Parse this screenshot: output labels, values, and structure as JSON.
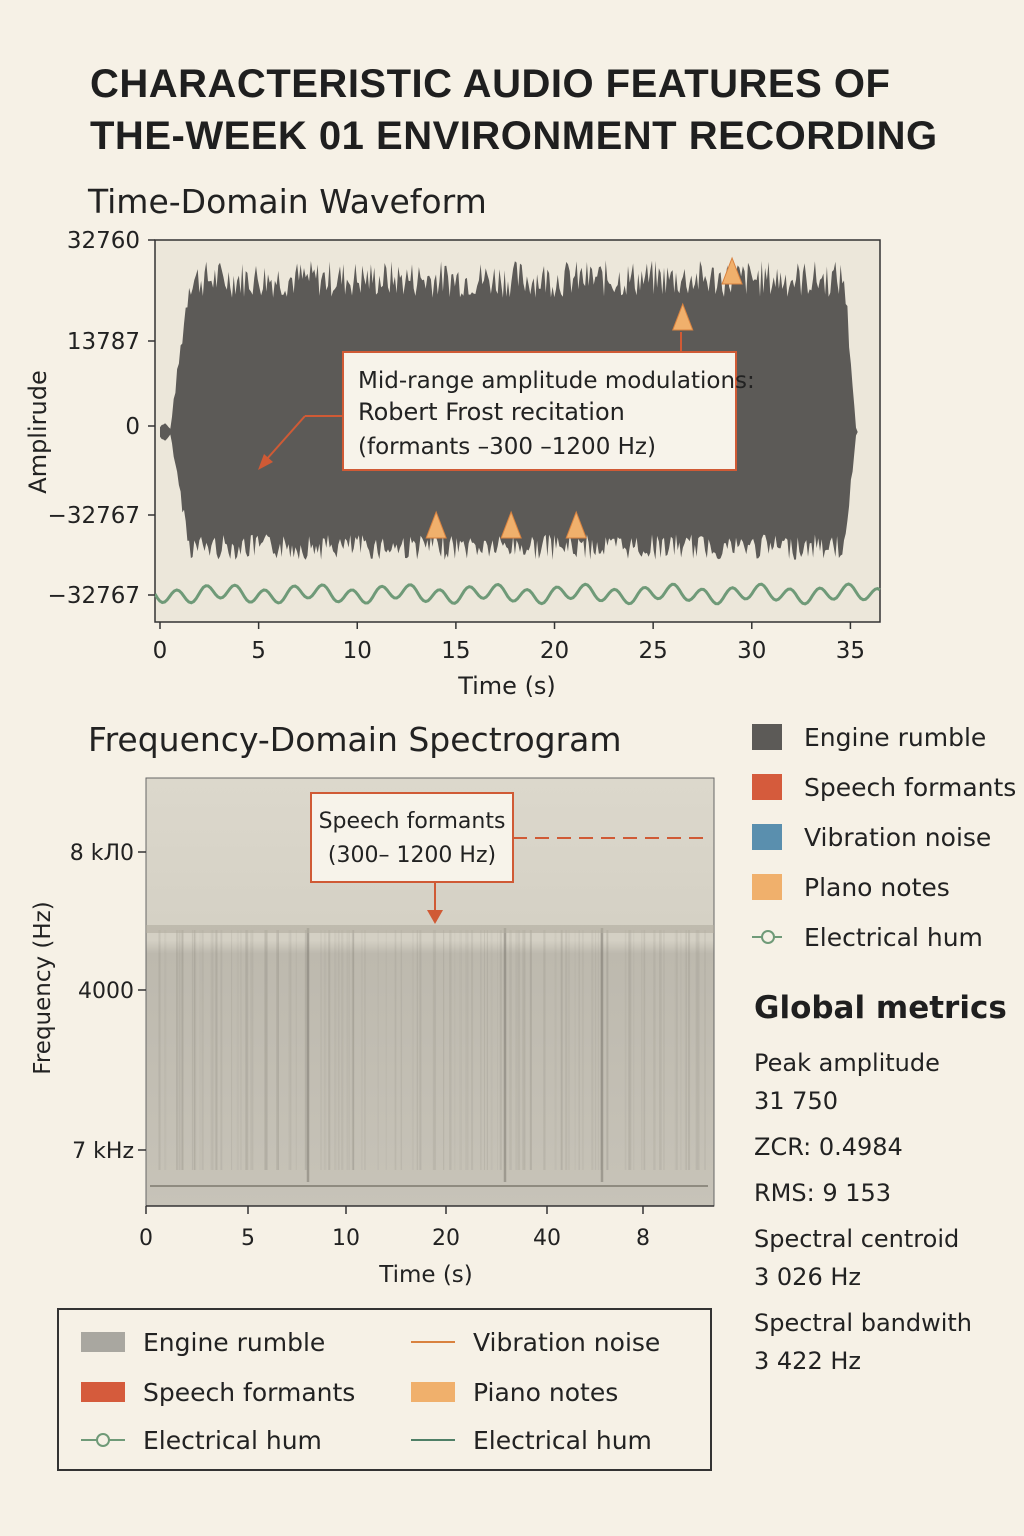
{
  "title_lines": [
    "CHARACTERISTIC AUDIO FEATURES OF",
    "THE-WEEK 01 ENVIRONMENT RECORDING"
  ],
  "colors": {
    "engine": "#5c5a57",
    "speech": "#d55b3c",
    "vibration": "#5a8fae",
    "piano": "#f0b06c",
    "hum": "#6f9a78",
    "annotation": "#d05a35",
    "spectrogram_bg": "#cfcabd"
  },
  "chart_data": [
    {
      "type": "area",
      "title": "Time-Domain Waveform",
      "xlabel": "Time (s)",
      "ylabel": "Amplirude",
      "x_ticks": [
        "0",
        "5",
        "10",
        "15",
        "20",
        "25",
        "30",
        "35"
      ],
      "x_range": [
        0,
        36.5
      ],
      "y_ticks": [
        "32760",
        "13787",
        "0",
        "−32767",
        "−32767"
      ],
      "series": [
        {
          "name": "Engine rumble",
          "kind": "waveform envelope",
          "start_s": 1.5,
          "end_s": 35.3,
          "peak_amplitude": 31750
        },
        {
          "name": "Electrical hum",
          "kind": "low sinusoid"
        }
      ],
      "piano_note_markers": [
        {
          "time_s": 14.0,
          "level": "low"
        },
        {
          "time_s": 17.8,
          "level": "low"
        },
        {
          "time_s": 21.1,
          "level": "low"
        },
        {
          "time_s": 26.5,
          "level": "high"
        },
        {
          "time_s": 29.0,
          "level": "top"
        }
      ],
      "annotation": {
        "lines": [
          "Mid-range amplitude modulations:",
          "Robert Frost recitation",
          "(formants –300 –1200 Hz)"
        ]
      }
    },
    {
      "type": "heatmap",
      "title": "Frequency-Domain Spectrogram",
      "xlabel": "Time (s)",
      "ylabel": "Frequency (Hz)",
      "x_ticks": [
        "0",
        "5",
        "10",
        "20",
        "40",
        "8"
      ],
      "y_ticks": [
        "8 kЛ0",
        "4000",
        "7 kHz"
      ],
      "annotation": {
        "lines": [
          "Speech formants",
          "(300– 1200 Hz)"
        ]
      }
    }
  ],
  "legend_right": [
    {
      "label": "Engine rumble",
      "swatch": "engine",
      "kind": "box"
    },
    {
      "label": "Speech formants",
      "swatch": "speech",
      "kind": "box"
    },
    {
      "label": "Vibration noise",
      "swatch": "vibration",
      "kind": "box"
    },
    {
      "label": "Plano notes",
      "swatch": "piano",
      "kind": "box"
    },
    {
      "label": "Electrical hum",
      "swatch": "hum",
      "kind": "line-dot"
    }
  ],
  "metrics": {
    "heading": "Global metrics",
    "items": [
      {
        "lines": [
          "Peak amplitude",
          "31 750"
        ]
      },
      {
        "lines": [
          "ZCR: 0.4984"
        ]
      },
      {
        "lines": [
          "RMS: 9 153"
        ]
      },
      {
        "lines": [
          "Spectral centroid",
          "3 026 Hz"
        ]
      },
      {
        "lines": [
          "Spectral bandwith",
          "3 422 Hz"
        ]
      }
    ]
  },
  "legend_bottom": [
    {
      "label": "Engine rumble",
      "kind": "box",
      "color": "#a9a7a0"
    },
    {
      "label": "Vibration noise",
      "kind": "line",
      "color": "#d9823f"
    },
    {
      "label": "Speech formants",
      "kind": "box",
      "color": "#d55b3c"
    },
    {
      "label": "Piano notes",
      "kind": "box",
      "color": "#f0b06c"
    },
    {
      "label": "Electrical hum",
      "kind": "line-dot",
      "color": "#6f9a78"
    },
    {
      "label": "Electrical hum",
      "kind": "line",
      "color": "#4f7f66"
    }
  ]
}
